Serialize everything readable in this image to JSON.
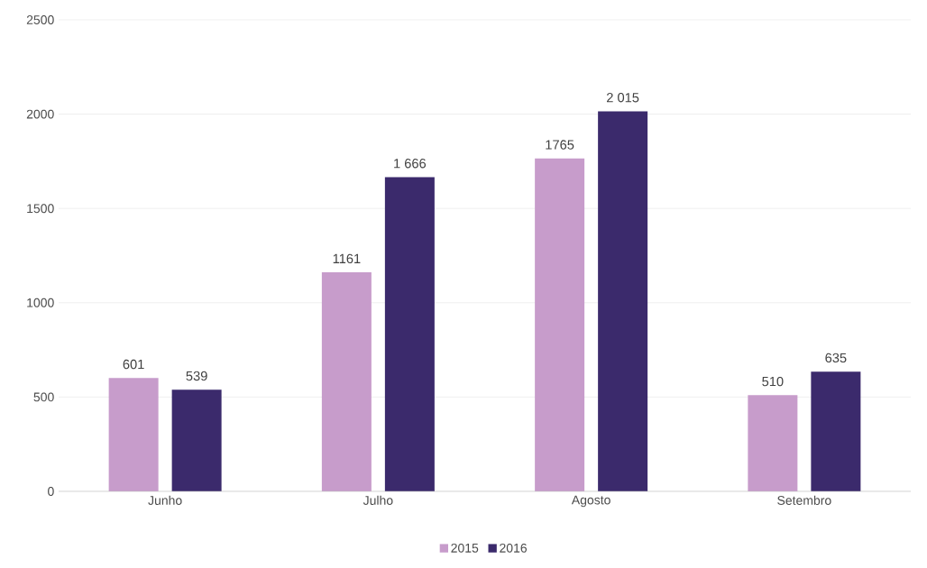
{
  "chart_data": {
    "type": "bar",
    "categories": [
      "Junho",
      "Julho",
      "Agosto",
      "Setembro"
    ],
    "series": [
      {
        "name": "2015",
        "color": "#c79ccb",
        "values": [
          601,
          1161,
          1765,
          510
        ],
        "value_labels": [
          "601",
          "1161",
          "1765",
          "510"
        ]
      },
      {
        "name": "2016",
        "color": "#3b2a6c",
        "values": [
          539,
          1666,
          2015,
          635
        ],
        "value_labels": [
          "539",
          "1 666",
          "2 015",
          "635"
        ]
      }
    ],
    "ylim": [
      0,
      2500
    ],
    "yticks": [
      0,
      500,
      1000,
      1500,
      2000,
      2500
    ],
    "grid": "y",
    "legend": "bottom"
  }
}
